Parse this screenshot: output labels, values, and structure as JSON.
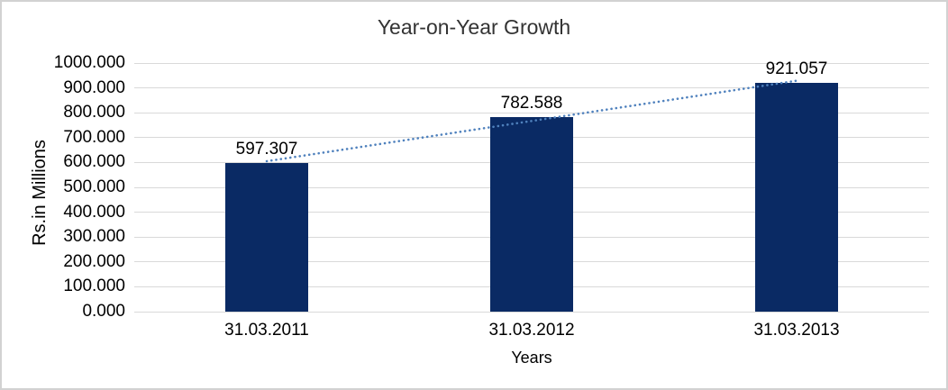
{
  "window": {
    "background_color": "#ffffff",
    "border_color": "#d2d2d2"
  },
  "chart_data": {
    "type": "bar",
    "title": "Year-on-Year Growth",
    "xlabel": "Years",
    "ylabel": "Rs.in Millions",
    "categories": [
      "31.03.2011",
      "31.03.2012",
      "31.03.2013"
    ],
    "values": [
      597.307,
      782.588,
      921.057
    ],
    "data_labels": [
      "597.307",
      "782.588",
      "921.057"
    ],
    "ylim": [
      0,
      1000
    ],
    "ytick_step": 100,
    "ytick_labels": [
      "0.000",
      "100.000",
      "200.000",
      "300.000",
      "400.000",
      "500.000",
      "600.000",
      "700.000",
      "800.000",
      "900.000",
      "1000.000"
    ],
    "grid": true,
    "legend": "none",
    "bar_color": "#0a2a64",
    "gridline_color": "#d9d9d9",
    "text_color": "#000000",
    "title_color": "#333333",
    "trendline": {
      "type": "linear",
      "style": "dotted",
      "color": "#4f81bd"
    }
  }
}
